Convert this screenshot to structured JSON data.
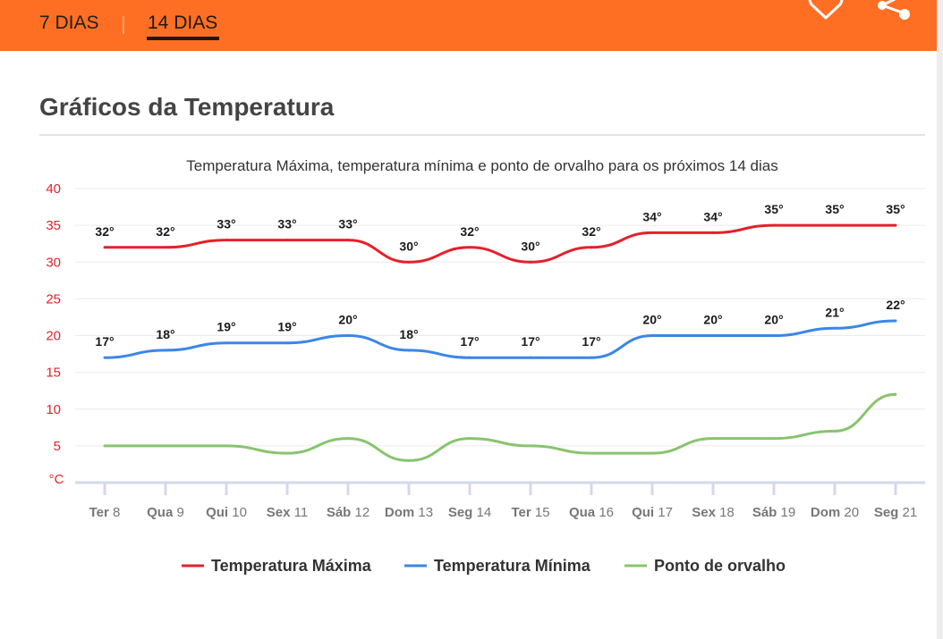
{
  "header": {
    "tabs": [
      {
        "label": "7 DIAS",
        "active": false
      },
      {
        "label": "14 DIAS",
        "active": true
      }
    ],
    "favorite_icon": "heart-outline-icon",
    "share_icon": "share-icon",
    "background_color": "#ff6f23"
  },
  "section": {
    "title": "Gráficos da Temperatura"
  },
  "chart_data": {
    "type": "line",
    "title": "Temperatura Máxima, temperatura mínima e ponto de orvalho para os próximos 14 dias",
    "ylabel": "°C",
    "ylim": [
      0,
      40
    ],
    "yticks": [
      "40",
      "35",
      "30",
      "25",
      "20",
      "15",
      "10",
      "5"
    ],
    "grid": true,
    "legend_position": "bottom",
    "categories": [
      {
        "day": "Ter",
        "date": "8"
      },
      {
        "day": "Qua",
        "date": "9"
      },
      {
        "day": "Qui",
        "date": "10"
      },
      {
        "day": "Sex",
        "date": "11"
      },
      {
        "day": "Sáb",
        "date": "12"
      },
      {
        "day": "Dom",
        "date": "13"
      },
      {
        "day": "Seg",
        "date": "14"
      },
      {
        "day": "Ter",
        "date": "15"
      },
      {
        "day": "Qua",
        "date": "16"
      },
      {
        "day": "Qui",
        "date": "17"
      },
      {
        "day": "Sex",
        "date": "18"
      },
      {
        "day": "Sáb",
        "date": "19"
      },
      {
        "day": "Dom",
        "date": "20"
      },
      {
        "day": "Seg",
        "date": "21"
      }
    ],
    "series": [
      {
        "name": "Temperatura Máxima",
        "color": "#e5202b",
        "show_labels": true,
        "values": [
          32,
          32,
          33,
          33,
          33,
          30,
          32,
          30,
          32,
          34,
          34,
          35,
          35,
          35
        ]
      },
      {
        "name": "Temperatura Mínima",
        "color": "#3b86e8",
        "show_labels": true,
        "values": [
          17,
          18,
          19,
          19,
          20,
          18,
          17,
          17,
          17,
          20,
          20,
          20,
          21,
          22
        ]
      },
      {
        "name": "Ponto de orvalho",
        "color": "#88c46e",
        "show_labels": false,
        "values": [
          5,
          5,
          5,
          4,
          6,
          3,
          6,
          5,
          4,
          4,
          6,
          6,
          7,
          12
        ]
      }
    ],
    "label_suffix": "°",
    "tick_label_color": "#e5202b",
    "axis_color": "#d3d8ec"
  }
}
